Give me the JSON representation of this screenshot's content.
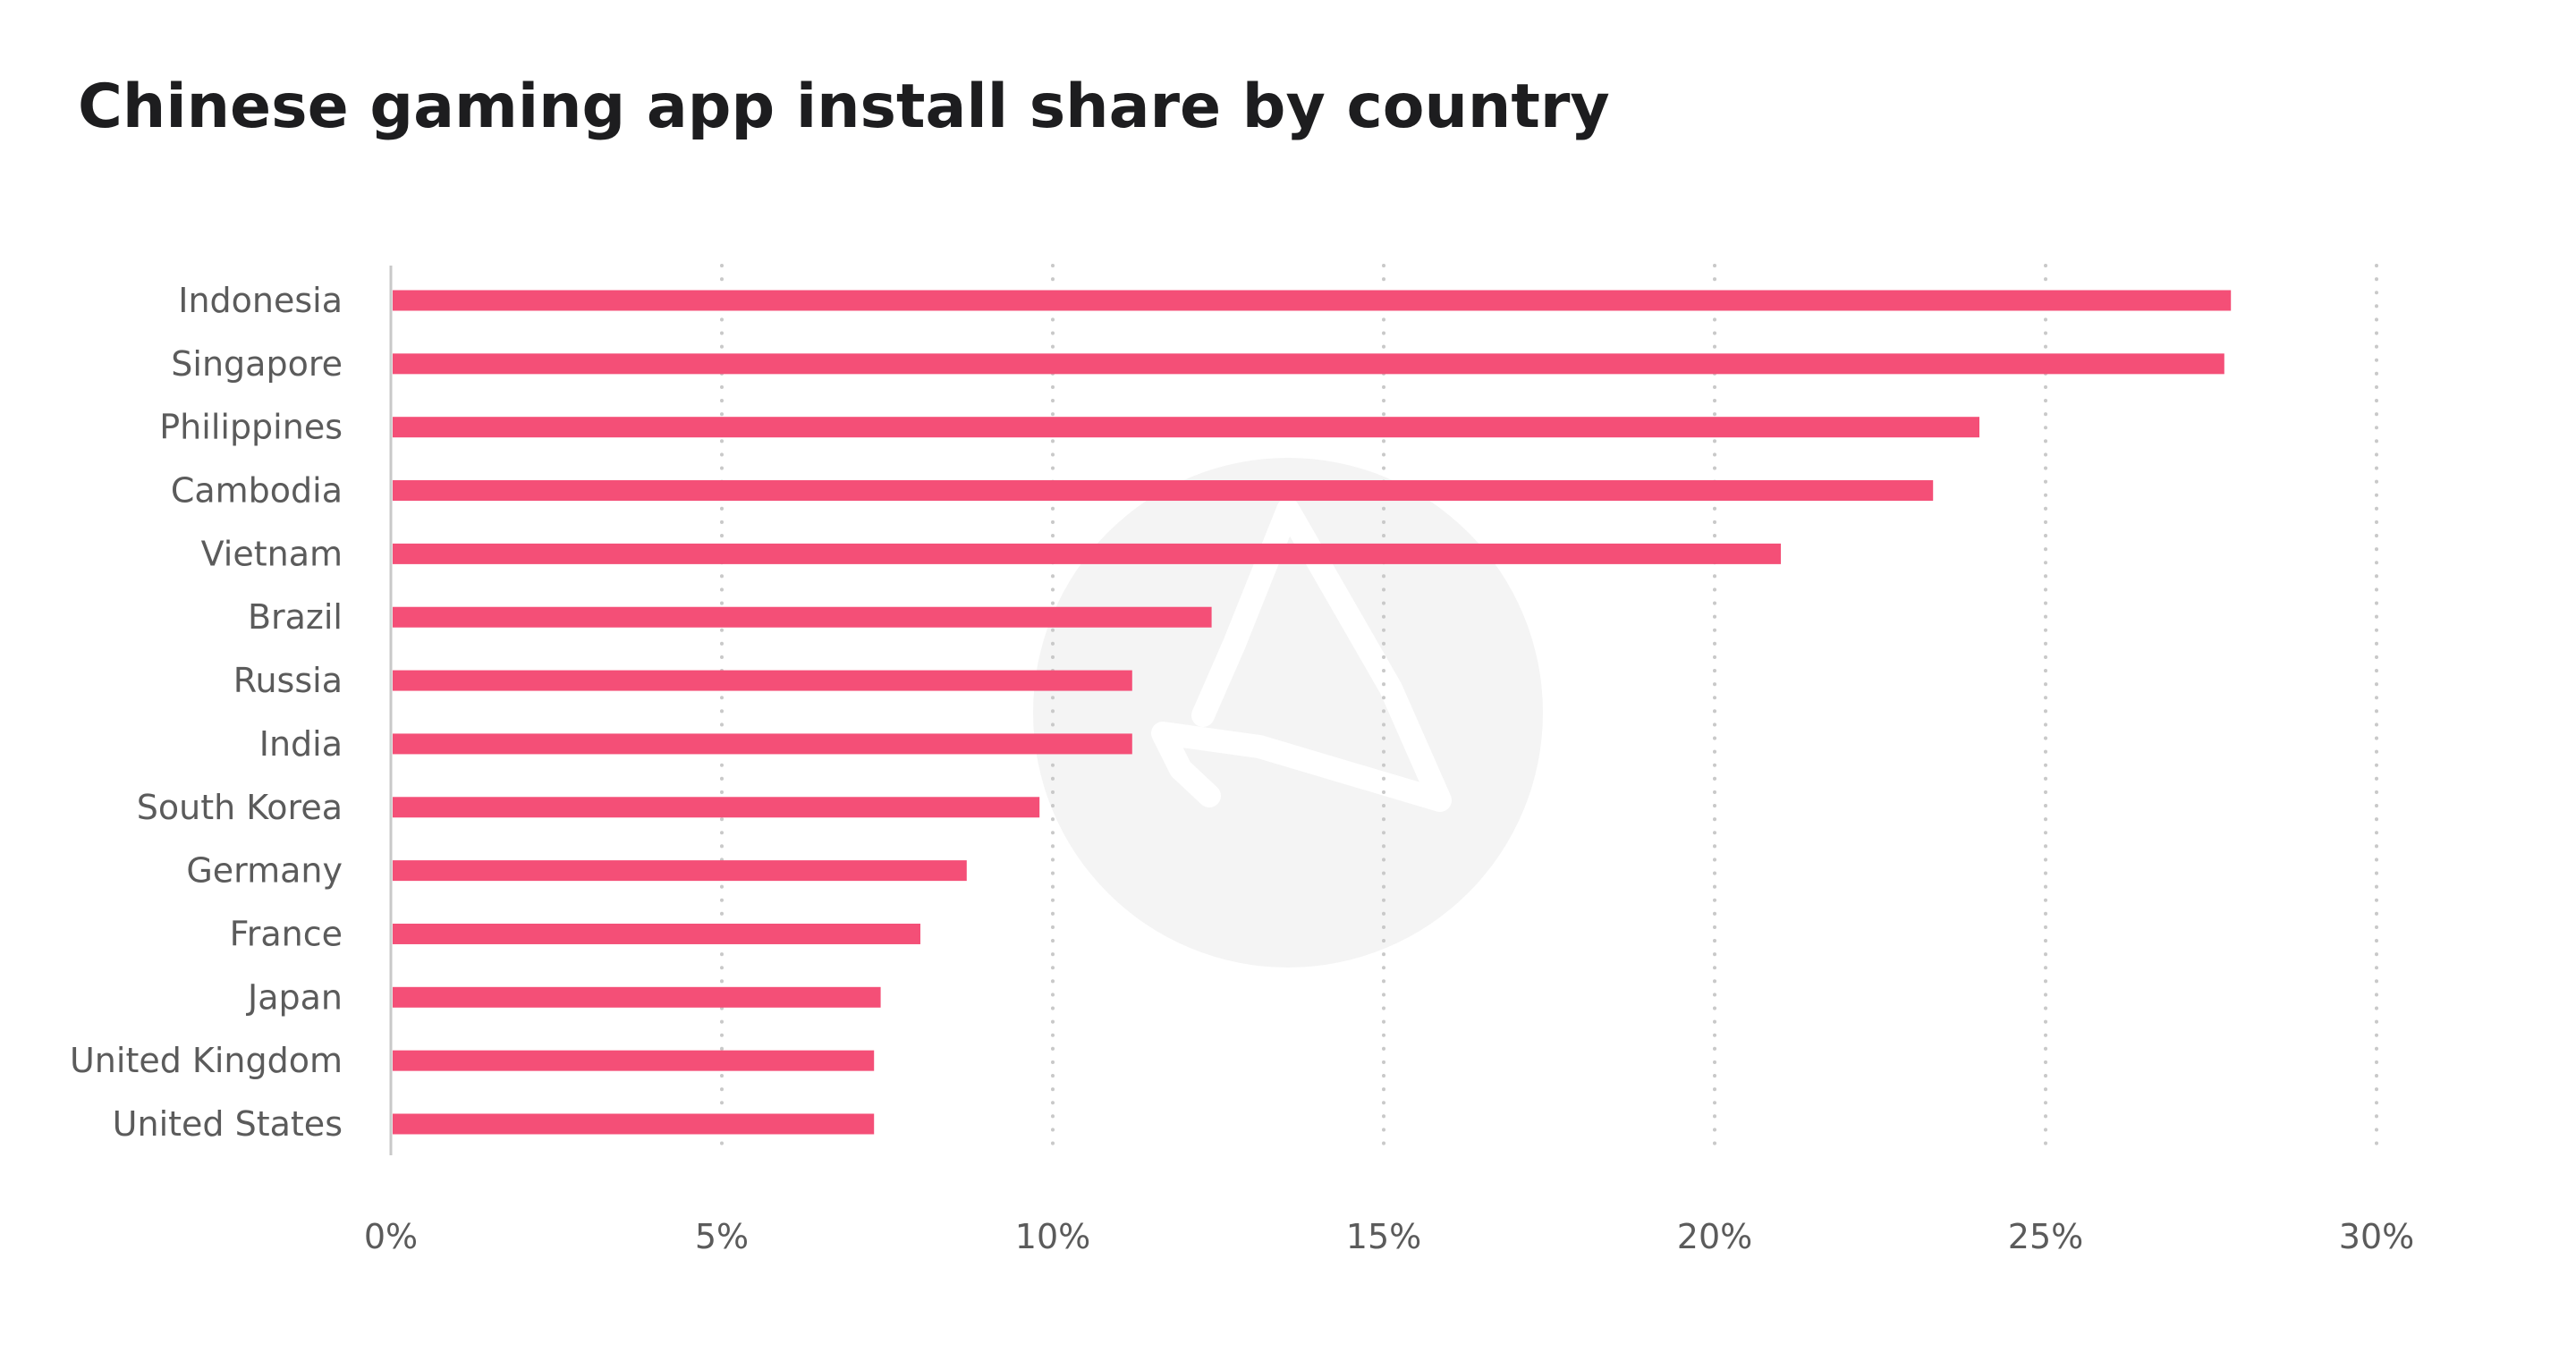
{
  "chart_data": {
    "type": "bar",
    "orientation": "horizontal",
    "title": "Chinese gaming app install share by country",
    "xlabel": "",
    "ylabel": "",
    "categories": [
      "Indonesia",
      "Singapore",
      "Philippines",
      "Cambodia",
      "Vietnam",
      "Brazil",
      "Russia",
      "India",
      "South Korea",
      "Germany",
      "France",
      "Japan",
      "United Kingdom",
      "United States"
    ],
    "values": [
      27.8,
      27.7,
      24.0,
      23.3,
      21.0,
      12.4,
      11.2,
      11.2,
      9.8,
      8.7,
      8.0,
      7.4,
      7.3,
      7.3
    ],
    "xlim": [
      0,
      30
    ],
    "xticks": [
      0,
      5,
      10,
      15,
      20,
      25,
      30
    ],
    "xtick_labels": [
      "0%",
      "5%",
      "10%",
      "15%",
      "20%",
      "25%",
      "30%"
    ],
    "grid": "vertical dotted",
    "bar_color": "#f44f77",
    "grid_color": "#c9c9c9",
    "axis_color": "#c9c9c9",
    "watermark_icon": "appsflyer-logo-icon",
    "watermark_color": "#f4f4f4"
  }
}
